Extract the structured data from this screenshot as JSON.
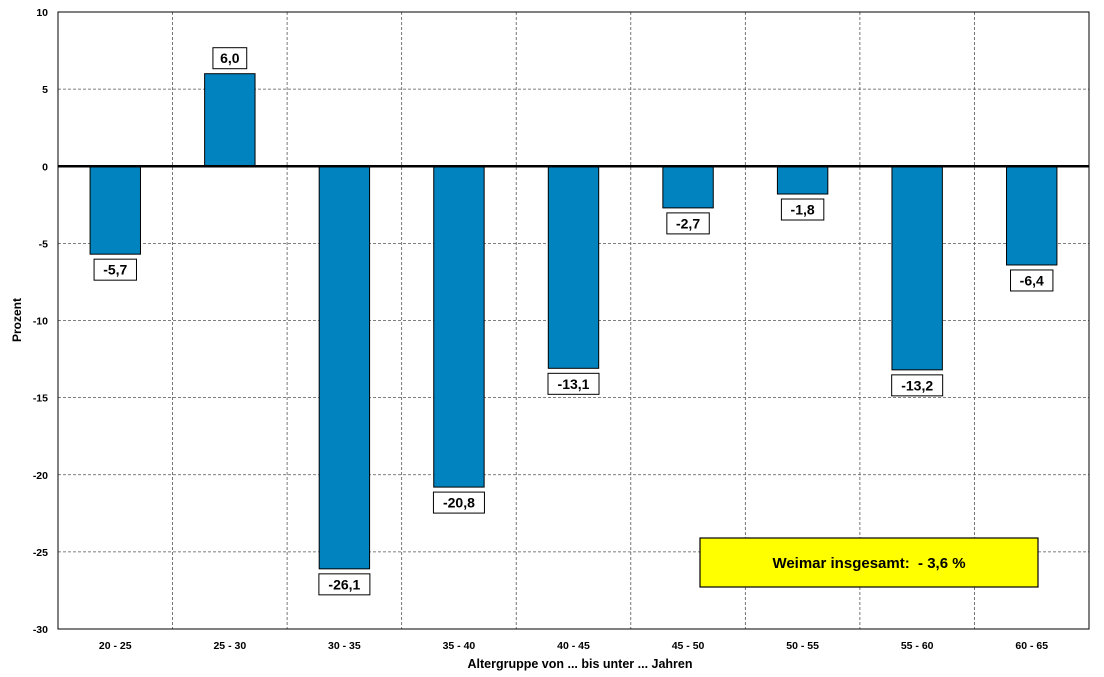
{
  "chart_data": {
    "type": "bar",
    "categories": [
      "20 - 25",
      "25 - 30",
      "30 - 35",
      "35 - 40",
      "40 - 45",
      "45 - 50",
      "50 - 55",
      "55 - 60",
      "60 - 65"
    ],
    "values": [
      -5.7,
      6.0,
      -26.1,
      -20.8,
      -13.1,
      -2.7,
      -1.8,
      -13.2,
      -6.4
    ],
    "value_labels": [
      "-5,7",
      "6,0",
      "-26,1",
      "-20,8",
      "-13,1",
      "-2,7",
      "-1,8",
      "-13,2",
      "-6,4"
    ],
    "xlabel": "Altergruppe von ... bis unter ... Jahren",
    "ylabel": "Prozent",
    "ylim": [
      -30,
      10
    ],
    "yticks": [
      10,
      5,
      0,
      -5,
      -10,
      -15,
      -20,
      -25,
      -30
    ],
    "grid": true,
    "bar_color": "#0083be",
    "annotation": {
      "text": "Weimar insgesamt:  - 3,6 %",
      "color": "#ffff00"
    }
  }
}
